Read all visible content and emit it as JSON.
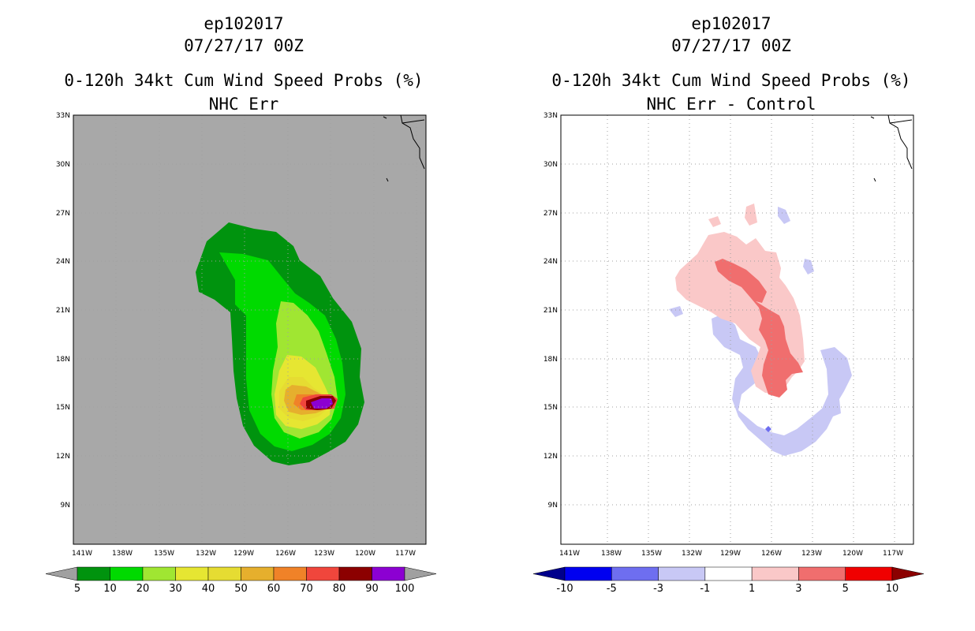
{
  "left": {
    "title_line1": "ep102017",
    "title_line2": "07/27/17 00Z",
    "title_line3": "0-120h 34kt Cum Wind Speed Probs (%)",
    "title_line4": "NHC Err",
    "colorbar_labels": [
      "5",
      "10",
      "20",
      "30",
      "40",
      "50",
      "60",
      "70",
      "80",
      "90",
      "100"
    ],
    "colorbar_colors": [
      "#a0a0a0",
      "#00930e",
      "#00da00",
      "#a0e632",
      "#e6e632",
      "#e6dc32",
      "#e6af2d",
      "#f08228",
      "#f0463c",
      "#8c0000",
      "#8c00d2",
      "#a0a0a0"
    ]
  },
  "right": {
    "title_line1": "ep102017",
    "title_line2": "07/27/17 00Z",
    "title_line3": "0-120h 34kt Cum Wind Speed Probs (%)",
    "title_line4": "NHC Err - Control",
    "colorbar_labels": [
      "-10",
      "-5",
      "-3",
      "-1",
      "1",
      "3",
      "5",
      "10"
    ],
    "colorbar_colors": [
      "#00008c",
      "#0000f0",
      "#6e6ef0",
      "#c8c8f5",
      "#ffffff",
      "#fac8c8",
      "#f06e6e",
      "#f00000",
      "#8c0000"
    ]
  },
  "lat_labels": [
    "33N",
    "30N",
    "27N",
    "24N",
    "21N",
    "18N",
    "15N",
    "12N",
    "9N"
  ],
  "lon_labels": [
    "141W",
    "138W",
    "135W",
    "132W",
    "129W",
    "126W",
    "123W",
    "120W",
    "117W"
  ],
  "storm_id": "ep102017",
  "valid_time": "07/27/17 00Z",
  "colors": {
    "map_background_left": "#a8a8a8",
    "grid": "#a0a0a0"
  }
}
